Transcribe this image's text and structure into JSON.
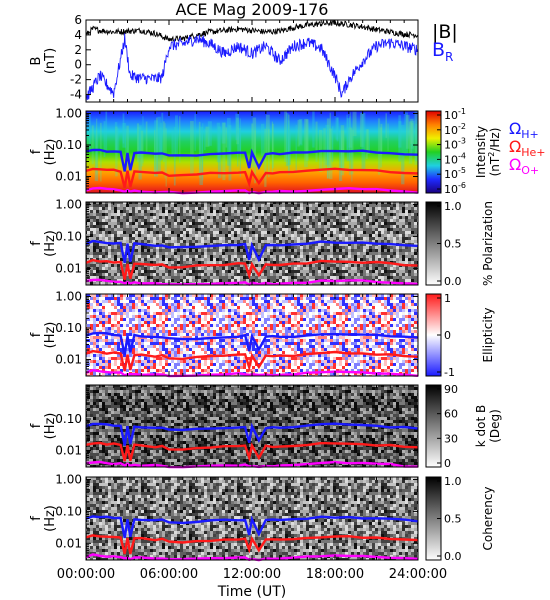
{
  "chart_data": {
    "title": "ACE Mag 2009-176",
    "xlabel": "Time (UT)",
    "x_ticks": [
      "00:00:00",
      "06:00:00",
      "12:00:00",
      "18:00:00",
      "24:00:00"
    ],
    "x_range_hours": [
      0,
      24
    ],
    "panels": [
      {
        "type": "line",
        "ylabel": [
          "B",
          "(nT)"
        ],
        "ylim": [
          -5,
          6
        ],
        "y_ticks": [
          -4,
          -2,
          0,
          2,
          4,
          6
        ],
        "legend": [
          {
            "label": "|B|",
            "color": "#000000"
          },
          {
            "label": "B",
            "sub": "R",
            "color": "#1a1aff"
          }
        ],
        "series": [
          {
            "name": "|B|",
            "color": "#000000",
            "x": [
              0,
              0.5,
              1,
              2,
              3,
              4,
              5,
              6,
              7,
              8,
              9,
              10,
              11,
              12,
              13,
              14,
              15,
              16,
              17,
              18,
              19,
              20,
              21,
              22,
              23,
              24
            ],
            "values": [
              4.0,
              4.8,
              4.6,
              4.4,
              4.5,
              4.6,
              4.2,
              3.4,
              3.5,
              4.0,
              4.4,
              4.6,
              4.8,
              4.6,
              4.4,
              4.5,
              5.0,
              5.3,
              5.5,
              5.6,
              5.4,
              5.1,
              4.7,
              4.4,
              4.1,
              4.0
            ]
          },
          {
            "name": "B_R",
            "color": "#1a1aff",
            "x": [
              0,
              0.5,
              1,
              2,
              2.8,
              3.2,
              4,
              5,
              5.5,
              6,
              7,
              8,
              9,
              10,
              11,
              12,
              13,
              14,
              15,
              16,
              17,
              18,
              18.5,
              19,
              20,
              21,
              22,
              23,
              24
            ],
            "values": [
              -4.5,
              -3.0,
              -1.5,
              -3.8,
              3.5,
              -1.5,
              -1.8,
              -1.9,
              -1.7,
              2.5,
              2.8,
              3.5,
              2.8,
              1.5,
              2.5,
              1.5,
              2.5,
              0.5,
              2.5,
              3.0,
              2.2,
              -1.5,
              -4.0,
              -2.0,
              0.5,
              2.5,
              3.0,
              2.5,
              2.0
            ]
          }
        ]
      },
      {
        "type": "heatmap",
        "ylabel": [
          "f",
          "(Hz)"
        ],
        "ylim": [
          0.003,
          1.2
        ],
        "yscale": "log",
        "y_ticks": [
          "1.00",
          "0.10",
          "0.01"
        ],
        "colorbar": {
          "label": [
            "Intensity",
            "(nT",
            "2",
            "/Hz)"
          ],
          "ticks": [
            "10",
            "10",
            "10",
            "10",
            "10",
            "10"
          ],
          "exponents": [
            "-1",
            "-2",
            "-3",
            "-4",
            "-5",
            "-6"
          ],
          "colors": [
            "#1a0080",
            "#1e2aff",
            "#1fd0e0",
            "#22d022",
            "#f0f000",
            "#ff8000",
            "#e00000"
          ]
        },
        "legend": [
          {
            "label": "Ω",
            "sub": "H+",
            "color": "#1a1aff"
          },
          {
            "label": "Ω",
            "sub": "He+",
            "color": "#ff1a1a"
          },
          {
            "label": "Ω",
            "sub": "O+",
            "color": "#ff00ff"
          }
        ]
      },
      {
        "type": "heatmap",
        "ylabel": [
          "f",
          "(Hz)"
        ],
        "ylim": [
          0.003,
          1.2
        ],
        "yscale": "log",
        "y_ticks": [
          "1.00",
          "0.10",
          "0.01"
        ],
        "colorbar": {
          "label": [
            "% Polarization"
          ],
          "ticks": [
            "1.0",
            "0.5",
            "0.0"
          ],
          "colors": [
            "#ffffff",
            "#000000"
          ]
        }
      },
      {
        "type": "heatmap",
        "ylabel": [
          "f",
          "(Hz)"
        ],
        "ylim": [
          0.003,
          1.2
        ],
        "yscale": "log",
        "y_ticks": [
          "1.00",
          "0.10",
          "0.01"
        ],
        "colorbar": {
          "label": [
            "Ellipticity"
          ],
          "ticks": [
            "1",
            "0",
            "-1"
          ],
          "colors": [
            "#1a1aff",
            "#ffffff",
            "#ff1a1a"
          ]
        }
      },
      {
        "type": "heatmap",
        "ylabel": [
          "f",
          "(Hz)"
        ],
        "ylim": [
          0.003,
          1.2
        ],
        "yscale": "log",
        "y_ticks": [
          "0.10",
          "0.01"
        ],
        "colorbar": {
          "label": [
            "k dot B",
            "(Deg)"
          ],
          "ticks": [
            "90",
            "60",
            "30",
            "0"
          ],
          "colors": [
            "#ffffff",
            "#000000"
          ]
        }
      },
      {
        "type": "heatmap",
        "ylabel": [
          "f",
          "(Hz)"
        ],
        "ylim": [
          0.003,
          1.2
        ],
        "yscale": "log",
        "y_ticks": [
          "1.00",
          "0.10",
          "0.01"
        ],
        "colorbar": {
          "label": [
            "Coherency"
          ],
          "ticks": [
            "1.0",
            "0.5",
            "0.0"
          ],
          "colors": [
            "#ffffff",
            "#000000"
          ]
        }
      }
    ],
    "gyrofrequency_lines": {
      "x": [
        0,
        0.5,
        1,
        1.5,
        2,
        2.5,
        2.8,
        3.0,
        3.2,
        3.5,
        4,
        5,
        5.5,
        6,
        7,
        8,
        9,
        10,
        11,
        11.5,
        11.8,
        12,
        12.5,
        13,
        13.5,
        14,
        15,
        16,
        17,
        18,
        19,
        20,
        21,
        22,
        23,
        24
      ],
      "H+_hz": [
        0.06,
        0.07,
        0.068,
        0.065,
        0.063,
        0.06,
        0.015,
        0.058,
        0.016,
        0.058,
        0.055,
        0.052,
        0.053,
        0.045,
        0.045,
        0.047,
        0.05,
        0.053,
        0.055,
        0.056,
        0.018,
        0.055,
        0.02,
        0.054,
        0.053,
        0.052,
        0.055,
        0.06,
        0.065,
        0.067,
        0.066,
        0.063,
        0.06,
        0.057,
        0.053,
        0.05
      ],
      "He+_hz": [
        0.015,
        0.0175,
        0.017,
        0.0162,
        0.0158,
        0.015,
        0.0045,
        0.0145,
        0.0048,
        0.0145,
        0.0138,
        0.013,
        0.0132,
        0.011,
        0.011,
        0.0118,
        0.0125,
        0.0132,
        0.0138,
        0.014,
        0.006,
        0.0138,
        0.006,
        0.0135,
        0.0132,
        0.013,
        0.0138,
        0.015,
        0.0162,
        0.0168,
        0.0165,
        0.0158,
        0.015,
        0.0142,
        0.0132,
        0.0125
      ],
      "O+_hz": [
        0.0038,
        0.0044,
        0.0042,
        0.004,
        0.0039,
        0.0038,
        0.0033,
        0.0036,
        0.0033,
        0.0036,
        0.0034,
        0.0033,
        0.0033,
        0.0031,
        0.0031,
        0.0032,
        0.0033,
        0.0034,
        0.0035,
        0.0035,
        0.0031,
        0.0034,
        0.0031,
        0.0034,
        0.0033,
        0.0033,
        0.0034,
        0.0037,
        0.004,
        0.0042,
        0.0041,
        0.004,
        0.0038,
        0.0036,
        0.0033,
        0.0031
      ]
    }
  }
}
